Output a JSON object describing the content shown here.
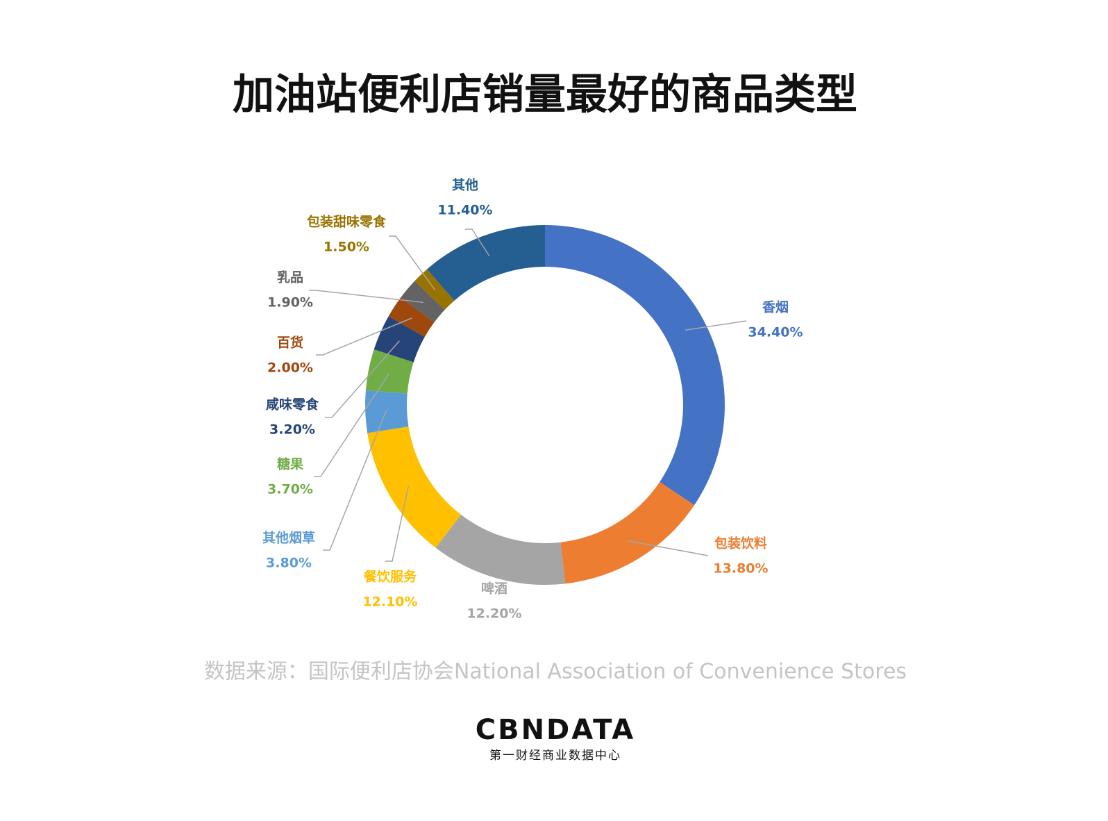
{
  "chart_data": {
    "type": "donut",
    "title": "加油站便利店销量最好的商品类型",
    "categories": [
      "香烟",
      "包装饮料",
      "啤酒",
      "餐饮服务",
      "其他烟草",
      "糖果",
      "咸味零食",
      "百货",
      "乳品",
      "包装甜味零食",
      "其他"
    ],
    "values": [
      34.4,
      13.8,
      12.2,
      12.1,
      3.8,
      3.7,
      3.2,
      2.0,
      1.9,
      1.5,
      11.4
    ],
    "value_labels": [
      "34.40%",
      "13.80%",
      "12.20%",
      "12.10%",
      "3.80%",
      "3.70%",
      "3.20%",
      "2.00%",
      "1.90%",
      "1.50%",
      "11.40%"
    ],
    "colors": [
      "#4472c4",
      "#ed7d31",
      "#a5a5a5",
      "#ffc000",
      "#5b9bd5",
      "#70ad47",
      "#264478",
      "#9e480e",
      "#636363",
      "#997300",
      "#255e91"
    ],
    "source": "数据来源：国际便利店协会National Association of Convenience Stores"
  },
  "brand": {
    "logo": "CBNDATA",
    "tagline": "第一财经商业数据中心"
  }
}
